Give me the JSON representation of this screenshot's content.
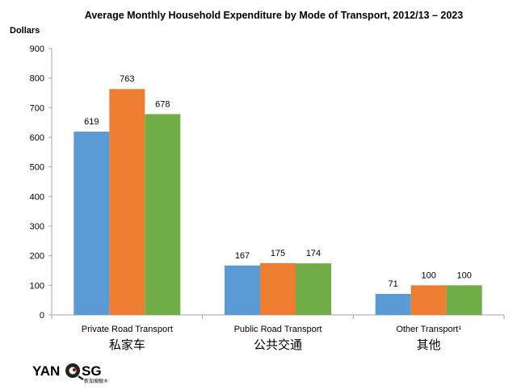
{
  "colors": {
    "series": [
      "#5b9bd5",
      "#ed7d31",
      "#70ad47"
    ],
    "axis": "#a6a6a6"
  },
  "chart_data": {
    "type": "bar",
    "title": "Average Monthly Household Expenditure by Mode of Transport, 2012/13 – 2023",
    "ylabel": "Dollars",
    "xlabel": "",
    "ylim": [
      0,
      900
    ],
    "yticks": [
      0,
      100,
      200,
      300,
      400,
      500,
      600,
      700,
      800,
      900
    ],
    "grid": false,
    "legend": "none",
    "categories": [
      "Private Road Transport",
      "Public Road Transport",
      "Other Transport¹"
    ],
    "categories_zh": [
      "私家车",
      "公共交通",
      "其他"
    ],
    "series": [
      {
        "values": [
          619,
          167,
          71
        ]
      },
      {
        "values": [
          763,
          175,
          100
        ]
      },
      {
        "values": [
          678,
          174,
          100
        ]
      }
    ]
  },
  "logo": {
    "text_left": "YAN",
    "text_right": "SG",
    "subtext": "新加坡眼®"
  }
}
